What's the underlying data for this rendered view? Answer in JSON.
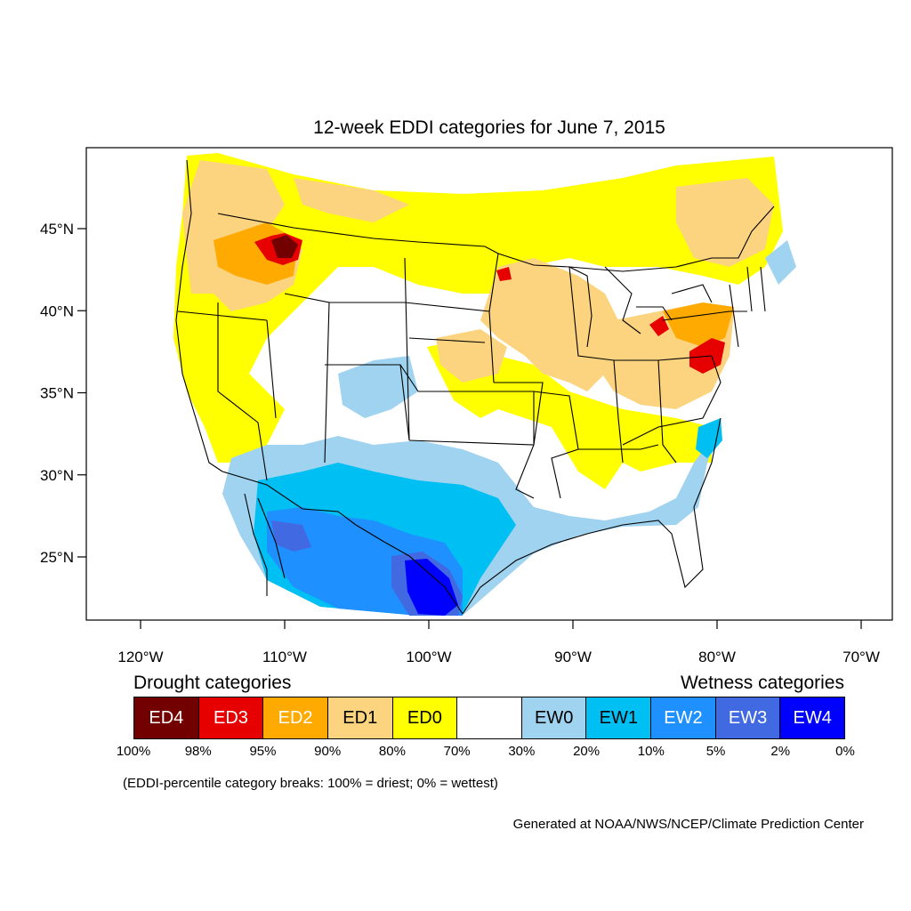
{
  "title": "12-week EDDI categories for June 7, 2015",
  "map": {
    "lat_labels": [
      {
        "lat": 45,
        "label": "45°N"
      },
      {
        "lat": 40,
        "label": "40°N"
      },
      {
        "lat": 35,
        "label": "35°N"
      },
      {
        "lat": 30,
        "label": "30°N"
      },
      {
        "lat": 25,
        "label": "25°N"
      }
    ],
    "lon_labels": [
      {
        "lon": -120,
        "label": "120°W"
      },
      {
        "lon": -110,
        "label": "110°W"
      },
      {
        "lon": -100,
        "label": "100°W"
      },
      {
        "lon": -90,
        "label": "90°W"
      },
      {
        "lon": -80,
        "label": "80°W"
      },
      {
        "lon": -70,
        "label": "70°W"
      }
    ],
    "lat_range": [
      21,
      50
    ],
    "lon_range": [
      -124,
      -69
    ],
    "regions": [
      {
        "name": "pacific-northwest",
        "category": "ED1"
      },
      {
        "name": "idaho-montana",
        "category": "ED3"
      },
      {
        "name": "california-coast",
        "category": "ED0"
      },
      {
        "name": "northern-plains",
        "category": "ED0"
      },
      {
        "name": "upper-midwest",
        "category": "ED1"
      },
      {
        "name": "ohio-valley",
        "category": "ED1"
      },
      {
        "name": "mid-atlantic",
        "category": "ED3"
      },
      {
        "name": "southern-plains",
        "category": "EW1"
      },
      {
        "name": "northern-mexico",
        "category": "EW2"
      },
      {
        "name": "south-texas",
        "category": "EW4"
      }
    ]
  },
  "legend": {
    "drought_heading": "Drought categories",
    "wetness_heading": "Wetness categories",
    "categories": [
      {
        "label": "ED4",
        "color": "#730000",
        "text_color": "#ffffff"
      },
      {
        "label": "ED3",
        "color": "#e60000",
        "text_color": "#ffffff"
      },
      {
        "label": "ED2",
        "color": "#ffaa00",
        "text_color": "#ffffff"
      },
      {
        "label": "ED1",
        "color": "#fcd37f",
        "text_color": "#000000"
      },
      {
        "label": "ED0",
        "color": "#ffff00",
        "text_color": "#000000"
      },
      {
        "label": "",
        "color": "#ffffff",
        "text_color": "#000000"
      },
      {
        "label": "EW0",
        "color": "#9fd3f0",
        "text_color": "#000000"
      },
      {
        "label": "EW1",
        "color": "#00bff3",
        "text_color": "#000000"
      },
      {
        "label": "EW2",
        "color": "#1e90ff",
        "text_color": "#ffffff"
      },
      {
        "label": "EW3",
        "color": "#4169e1",
        "text_color": "#ffffff"
      },
      {
        "label": "EW4",
        "color": "#0000ff",
        "text_color": "#ffffff"
      }
    ],
    "breaks": [
      "100%",
      "98%",
      "95%",
      "90%",
      "80%",
      "70%",
      "30%",
      "20%",
      "10%",
      "5%",
      "2%",
      "0%"
    ]
  },
  "note": "(EDDI-percentile category breaks: 100% = driest; 0% = wettest)",
  "credit": "Generated at NOAA/NWS/NCEP/Climate Prediction Center"
}
